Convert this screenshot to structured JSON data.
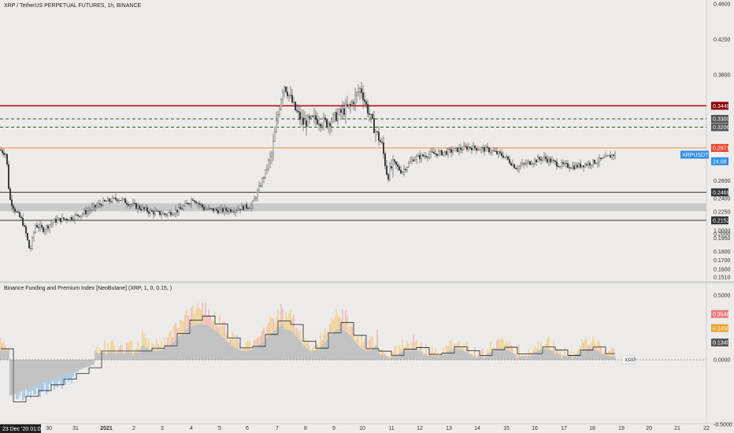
{
  "header": {
    "title": "XRP / TetherUS PERPETUAL FUTURES, 1h, BINANCE",
    "indicator_title": "Binance Funding and Premium Index  [NeoButane] (XRP, 1, 0, 0.15, )"
  },
  "price_axis": {
    "ticks": [
      "0.4600",
      "0.4200",
      "0.3800",
      "0.2600",
      "0.2400",
      "0.2250",
      "0.2000",
      "0.1950",
      "0.1800",
      "0.1700",
      "0.1600",
      "0.1510"
    ],
    "tick_values": [
      0.46,
      0.42,
      0.38,
      0.26,
      0.24,
      0.225,
      0.2,
      0.195,
      0.18,
      0.17,
      0.16,
      0.151
    ],
    "hidden_ticks": [
      "0.3300",
      "0.3206",
      "0.2971"
    ]
  },
  "badges": [
    {
      "text": "0.3448",
      "color": "#8b0000",
      "value": 0.3448
    },
    {
      "text": "0.3300",
      "color": "#555555",
      "value": 0.33
    },
    {
      "text": "0.3206",
      "color": "#555555",
      "value": 0.3206
    },
    {
      "text": "0.2971",
      "color": "#e8472c",
      "value": 0.2971
    },
    {
      "text": "XRPUSDTPERP",
      "color": "#2f8fe8",
      "value": 0.2895
    },
    {
      "text": "24:08",
      "color": "#2f8fe8",
      "value": 0.282
    },
    {
      "text": "0.2469",
      "color": "#333333",
      "value": 0.2469
    },
    {
      "text": "0.2152",
      "color": "#333333",
      "value": 0.2152
    }
  ],
  "levels": [
    {
      "name": "red-level",
      "value": 0.3448,
      "color": "#b30000",
      "style": "solid"
    },
    {
      "name": "dashed-level-1",
      "value": 0.33,
      "color": "#2a5a2a",
      "style": "dashed"
    },
    {
      "name": "dashed-level-2",
      "value": 0.3206,
      "color": "#2a5a2a",
      "style": "dashed"
    },
    {
      "name": "orange-level",
      "value": 0.2971,
      "color": "#ff8a3d",
      "style": "solid"
    },
    {
      "name": "dark-level-1",
      "value": 0.2469,
      "color": "#333333",
      "style": "solid"
    },
    {
      "name": "dark-level-2",
      "value": 0.2152,
      "color": "#333333",
      "style": "solid"
    }
  ],
  "zone": {
    "top": 0.2345,
    "bottom": 0.2255,
    "color": "#c9c9c9"
  },
  "indicator_axis": {
    "ticks": [
      "1.0000",
      "0.5000",
      "0.0000",
      "-0.5000"
    ],
    "tick_values": [
      1.0,
      0.5,
      0.0,
      -0.5
    ],
    "badges": [
      {
        "text": "0.3548",
        "color": "#e87a7a",
        "value": 0.3548
      },
      {
        "text": "0.2450",
        "color": "#e8a52c",
        "value": 0.245
      },
      {
        "text": "0.1340",
        "color": "#555555",
        "value": 0.134
      }
    ],
    "xrp_label": "XRP"
  },
  "time_axis": {
    "labels": [
      "30",
      "31",
      "2021",
      "2",
      "3",
      "4",
      "5",
      "6",
      "7",
      "8",
      "9",
      "10",
      "11",
      "12",
      "13",
      "14",
      "15",
      "16",
      "17",
      "18",
      "19",
      "20",
      "21",
      "22"
    ],
    "current": "23 Dec '20  01:00"
  },
  "chart_data": {
    "type": "candlestick",
    "symbol": "XRP / TetherUS PERPETUAL FUTURES",
    "interval": "1h",
    "ylim": [
      0.151,
      0.46
    ],
    "keypoints": [
      {
        "x": 0,
        "y": 0.295
      },
      {
        "x": 8,
        "y": 0.29
      },
      {
        "x": 12,
        "y": 0.24
      },
      {
        "x": 20,
        "y": 0.225
      },
      {
        "x": 28,
        "y": 0.215
      },
      {
        "x": 33,
        "y": 0.2
      },
      {
        "x": 38,
        "y": 0.18
      },
      {
        "x": 45,
        "y": 0.21
      },
      {
        "x": 55,
        "y": 0.205
      },
      {
        "x": 70,
        "y": 0.215
      },
      {
        "x": 90,
        "y": 0.218
      },
      {
        "x": 110,
        "y": 0.225
      },
      {
        "x": 130,
        "y": 0.235
      },
      {
        "x": 150,
        "y": 0.24
      },
      {
        "x": 170,
        "y": 0.232
      },
      {
        "x": 190,
        "y": 0.225
      },
      {
        "x": 210,
        "y": 0.222
      },
      {
        "x": 230,
        "y": 0.228
      },
      {
        "x": 245,
        "y": 0.24
      },
      {
        "x": 260,
        "y": 0.228
      },
      {
        "x": 280,
        "y": 0.226
      },
      {
        "x": 300,
        "y": 0.228
      },
      {
        "x": 320,
        "y": 0.232
      },
      {
        "x": 335,
        "y": 0.265
      },
      {
        "x": 345,
        "y": 0.29
      },
      {
        "x": 352,
        "y": 0.33
      },
      {
        "x": 360,
        "y": 0.37
      },
      {
        "x": 368,
        "y": 0.355
      },
      {
        "x": 375,
        "y": 0.34
      },
      {
        "x": 385,
        "y": 0.325
      },
      {
        "x": 400,
        "y": 0.33
      },
      {
        "x": 415,
        "y": 0.325
      },
      {
        "x": 430,
        "y": 0.335
      },
      {
        "x": 445,
        "y": 0.345
      },
      {
        "x": 458,
        "y": 0.365
      },
      {
        "x": 465,
        "y": 0.345
      },
      {
        "x": 475,
        "y": 0.32
      },
      {
        "x": 485,
        "y": 0.3
      },
      {
        "x": 492,
        "y": 0.265
      },
      {
        "x": 500,
        "y": 0.28
      },
      {
        "x": 510,
        "y": 0.27
      },
      {
        "x": 525,
        "y": 0.285
      },
      {
        "x": 545,
        "y": 0.29
      },
      {
        "x": 565,
        "y": 0.292
      },
      {
        "x": 595,
        "y": 0.298
      },
      {
        "x": 620,
        "y": 0.295
      },
      {
        "x": 640,
        "y": 0.288
      },
      {
        "x": 655,
        "y": 0.275
      },
      {
        "x": 670,
        "y": 0.28
      },
      {
        "x": 690,
        "y": 0.286
      },
      {
        "x": 710,
        "y": 0.278
      },
      {
        "x": 730,
        "y": 0.276
      },
      {
        "x": 750,
        "y": 0.28
      },
      {
        "x": 765,
        "y": 0.284
      },
      {
        "x": 780,
        "y": 0.29
      }
    ]
  }
}
